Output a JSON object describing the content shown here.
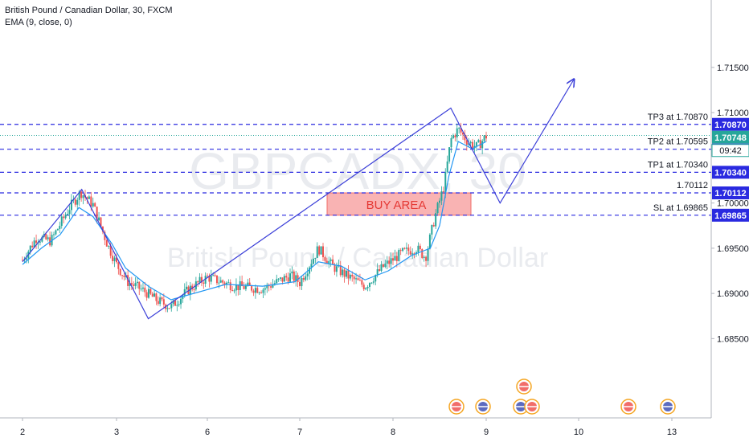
{
  "header": {
    "title": "British Pound / Canadian Dollar, 30, FXCM",
    "indicator": "EMA (9, close, 0)"
  },
  "watermark": {
    "symbol": "GBPCADX, 30",
    "name": "British Pound / Canadian Dollar"
  },
  "chart_data": {
    "type": "line",
    "x_tick_labels": [
      "2",
      "3",
      "6",
      "7",
      "8",
      "9",
      "10",
      "13"
    ],
    "y_tick_labels": [
      "1.68500",
      "1.69000",
      "1.69500",
      "1.70000",
      "1.71000",
      "1.71500"
    ],
    "y_ticks": [
      1.685,
      1.69,
      1.695,
      1.7,
      1.71,
      1.715
    ],
    "ylim": [
      1.6805,
      1.7205
    ],
    "levels": [
      {
        "label": "TP3 at 1.70870",
        "value": 1.7087,
        "tag": "1.70870"
      },
      {
        "label": "TP2 at 1.70595",
        "value": 1.70595,
        "tag": "1.70595"
      },
      {
        "label": "TP1 at 1.70340",
        "value": 1.7034,
        "tag": "1.70340"
      },
      {
        "label": "1.70112",
        "value": 1.70112,
        "tag": "1.70112"
      },
      {
        "label": "SL at 1.69865",
        "value": 1.69865,
        "tag": "1.69865"
      }
    ],
    "last_price": {
      "value": 1.70748,
      "label": "1.70748",
      "countdown": "09:42"
    },
    "buy_area": {
      "label": "BUY AREA",
      "low": 1.69865,
      "high": 1.70112
    },
    "price_path": [
      [
        0.0,
        1.6937
      ],
      [
        0.15,
        1.6962
      ],
      [
        0.3,
        1.6958
      ],
      [
        0.5,
        1.6995
      ],
      [
        0.62,
        1.7012
      ],
      [
        0.75,
        1.6998
      ],
      [
        0.9,
        1.6955
      ],
      [
        1.0,
        1.6932
      ],
      [
        1.12,
        1.6913
      ],
      [
        1.3,
        1.6903
      ],
      [
        1.45,
        1.6892
      ],
      [
        1.6,
        1.6885
      ],
      [
        1.8,
        1.6905
      ],
      [
        2.0,
        1.6918
      ],
      [
        2.3,
        1.6908
      ],
      [
        2.6,
        1.6905
      ],
      [
        2.9,
        1.692
      ],
      [
        3.0,
        1.6912
      ],
      [
        3.2,
        1.695
      ],
      [
        3.35,
        1.693
      ],
      [
        3.5,
        1.692
      ],
      [
        3.7,
        1.6908
      ],
      [
        3.9,
        1.693
      ],
      [
        4.1,
        1.6945
      ],
      [
        4.25,
        1.695
      ],
      [
        4.35,
        1.694
      ],
      [
        4.45,
        1.6985
      ],
      [
        4.55,
        1.702
      ],
      [
        4.62,
        1.707
      ],
      [
        4.7,
        1.7082
      ],
      [
        4.8,
        1.7068
      ],
      [
        4.9,
        1.7062
      ],
      [
        5.0,
        1.7074
      ]
    ],
    "ema_path": [
      [
        0.0,
        1.6932
      ],
      [
        0.2,
        1.695
      ],
      [
        0.4,
        1.6965
      ],
      [
        0.6,
        1.6995
      ],
      [
        0.75,
        1.6985
      ],
      [
        0.95,
        1.6955
      ],
      [
        1.1,
        1.6928
      ],
      [
        1.35,
        1.6908
      ],
      [
        1.6,
        1.6893
      ],
      [
        1.85,
        1.69
      ],
      [
        2.2,
        1.691
      ],
      [
        2.6,
        1.6908
      ],
      [
        2.95,
        1.6913
      ],
      [
        3.2,
        1.6935
      ],
      [
        3.45,
        1.693
      ],
      [
        3.7,
        1.6915
      ],
      [
        3.95,
        1.6925
      ],
      [
        4.2,
        1.6942
      ],
      [
        4.4,
        1.695
      ],
      [
        4.5,
        1.6975
      ],
      [
        4.6,
        1.703
      ],
      [
        4.7,
        1.7068
      ],
      [
        4.85,
        1.706
      ],
      [
        5.0,
        1.7068
      ]
    ],
    "analysis_path": [
      [
        0.0,
        1.6935
      ],
      [
        0.63,
        1.7015
      ],
      [
        1.35,
        1.6872
      ],
      [
        4.62,
        1.7105
      ],
      [
        5.15,
        1.7
      ],
      [
        5.95,
        1.7137
      ]
    ]
  },
  "colors": {
    "level_line": "#2a2ae0",
    "analysis_line": "#3b3fd8",
    "up_candle": "#26a69a",
    "down_candle": "#ef5350",
    "ema": "#2196f3",
    "tag_bg": "#2a2ae0",
    "last_price_tag": "#26a69a",
    "buy_fill": "#f8a6a6",
    "buy_border": "#ef5350"
  }
}
